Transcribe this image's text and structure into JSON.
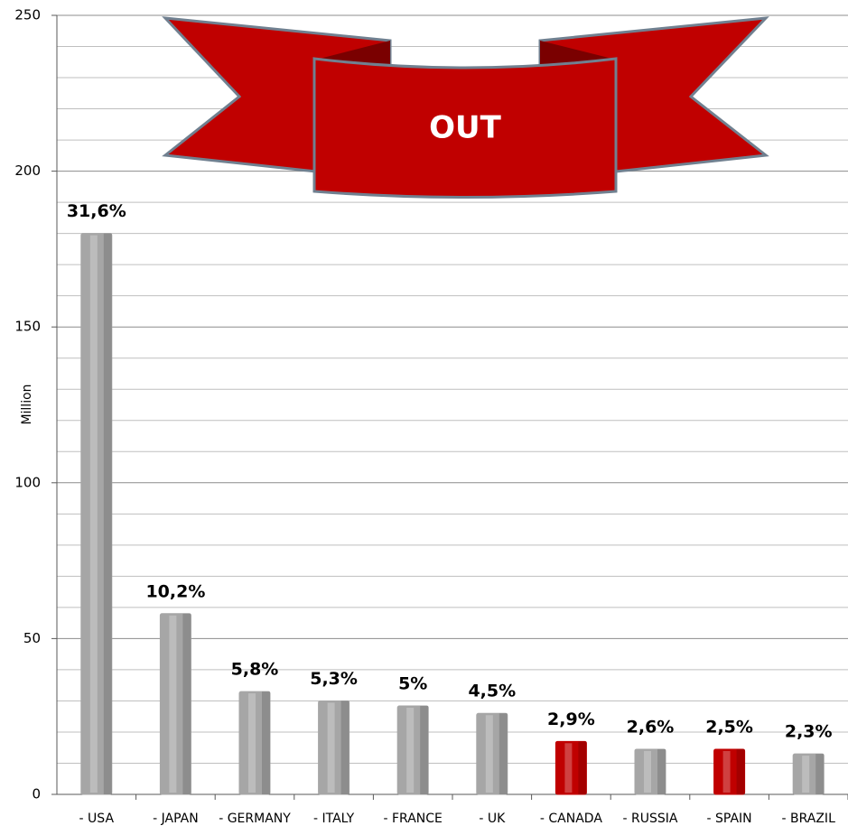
{
  "chart_data": {
    "type": "bar",
    "y_label": "Million",
    "annotation": "OUT",
    "categories": [
      "- USA",
      "- JAPAN",
      "- GERMANY",
      "- ITALY",
      "- FRANCE",
      "- UK",
      "- CANADA",
      "- RUSSIA",
      "- SPAIN",
      "- BRAZIL"
    ],
    "values": [
      180,
      58,
      33,
      30,
      28.4,
      26,
      17,
      14.5,
      14.5,
      13
    ],
    "data_labels": [
      "31,6%",
      "10,2%",
      "5,8%",
      "5,3%",
      "5%",
      "4,5%",
      "2,9%",
      "2,6%",
      "2,5%",
      "2,3%"
    ],
    "colors": [
      "#a6a6a6",
      "#a6a6a6",
      "#a6a6a6",
      "#a6a6a6",
      "#a6a6a6",
      "#a6a6a6",
      "#c00000",
      "#a6a6a6",
      "#c00000",
      "#a6a6a6"
    ],
    "ylim": [
      0,
      250
    ],
    "yticks": [
      0,
      50,
      100,
      150,
      200,
      250
    ],
    "minor_gridlines": [
      10,
      20,
      30,
      40,
      60,
      70,
      80,
      90,
      110,
      120,
      130,
      140,
      160,
      170,
      180,
      190,
      210,
      220,
      230,
      240
    ],
    "grid": true
  }
}
